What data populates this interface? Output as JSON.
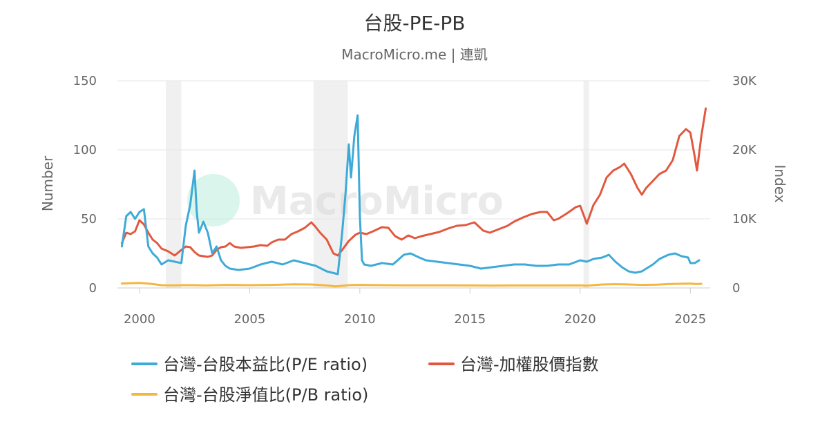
{
  "chart_data": {
    "type": "line",
    "title": "台股-PE-PB",
    "subtitle": "MacroMicro.me | 連凱",
    "ylabel_left": "Number",
    "ylabel_right": "Index",
    "watermark": "MacroMicro",
    "xlim": [
      1999.0,
      2025.9
    ],
    "ylim_left": [
      0,
      150
    ],
    "ylim_right": [
      0,
      30000
    ],
    "x_ticks": [
      2000,
      2005,
      2010,
      2015,
      2020,
      2025
    ],
    "x_tick_labels": [
      "2000",
      "2005",
      "2010",
      "2015",
      "2020",
      "2025"
    ],
    "y_left_ticks": [
      0,
      50,
      100,
      150
    ],
    "y_left_tick_labels": [
      "0",
      "50",
      "100",
      "150"
    ],
    "y_right_ticks": [
      0,
      10000,
      20000,
      30000
    ],
    "y_right_tick_labels": [
      "0",
      "10K",
      "20K",
      "30K"
    ],
    "grid": true,
    "legend_position": "bottom",
    "recession_bands": [
      [
        2001.2,
        2001.9
      ],
      [
        2007.9,
        2009.45
      ],
      [
        2020.15,
        2020.4
      ]
    ],
    "series": [
      {
        "name": "台灣-台股本益比(P/E ratio)",
        "color": "#3eaad8",
        "axis": "left",
        "x": [
          1999.2,
          1999.4,
          1999.6,
          1999.8,
          2000.0,
          2000.2,
          2000.4,
          2000.6,
          2000.8,
          2001.0,
          2001.3,
          2001.6,
          2001.9,
          2002.1,
          2002.3,
          2002.5,
          2002.6,
          2002.7,
          2002.9,
          2003.1,
          2003.3,
          2003.5,
          2003.7,
          2003.9,
          2004.1,
          2004.5,
          2005.0,
          2005.5,
          2006.0,
          2006.5,
          2007.0,
          2007.5,
          2008.0,
          2008.5,
          2009.0,
          2009.2,
          2009.35,
          2009.5,
          2009.6,
          2009.75,
          2009.9,
          2010.0,
          2010.1,
          2010.2,
          2010.5,
          2011.0,
          2011.5,
          2012.0,
          2012.3,
          2012.7,
          2013.0,
          2013.5,
          2014.0,
          2014.5,
          2015.0,
          2015.5,
          2016.0,
          2016.5,
          2017.0,
          2017.5,
          2018.0,
          2018.5,
          2019.0,
          2019.5,
          2020.0,
          2020.3,
          2020.6,
          2021.0,
          2021.3,
          2021.6,
          2021.9,
          2022.2,
          2022.5,
          2022.8,
          2023.0,
          2023.3,
          2023.6,
          2024.0,
          2024.3,
          2024.6,
          2024.9,
          2025.0,
          2025.2,
          2025.4
        ],
        "values": [
          30,
          52,
          55,
          50,
          55,
          57,
          30,
          25,
          22,
          17,
          20,
          19,
          18,
          45,
          60,
          85,
          55,
          40,
          48,
          40,
          25,
          30,
          20,
          16,
          14,
          13,
          14,
          17,
          19,
          17,
          20,
          18,
          16,
          12,
          10,
          40,
          68,
          104,
          80,
          110,
          125,
          52,
          20,
          17,
          16,
          18,
          17,
          24,
          25,
          22,
          20,
          19,
          18,
          17,
          16,
          14,
          15,
          16,
          17,
          17,
          16,
          16,
          17,
          17,
          20,
          19,
          21,
          22,
          24,
          19,
          15,
          12,
          11,
          12,
          14,
          17,
          21,
          24,
          25,
          23,
          22,
          18,
          18,
          20
        ]
      },
      {
        "name": "台灣-加權股價指數",
        "color": "#e2583e",
        "axis": "right",
        "x": [
          1999.2,
          1999.4,
          1999.6,
          1999.8,
          2000.0,
          2000.2,
          2000.4,
          2000.6,
          2000.8,
          2001.0,
          2001.3,
          2001.6,
          2001.9,
          2002.1,
          2002.3,
          2002.5,
          2002.7,
          2002.9,
          2003.1,
          2003.3,
          2003.5,
          2003.7,
          2003.9,
          2004.1,
          2004.3,
          2004.6,
          2004.9,
          2005.2,
          2005.5,
          2005.8,
          2006.0,
          2006.3,
          2006.6,
          2006.9,
          2007.2,
          2007.5,
          2007.8,
          2008.0,
          2008.2,
          2008.5,
          2008.8,
          2009.0,
          2009.2,
          2009.5,
          2009.8,
          2010.0,
          2010.3,
          2010.6,
          2011.0,
          2011.3,
          2011.6,
          2011.9,
          2012.2,
          2012.5,
          2012.8,
          2013.2,
          2013.6,
          2014.0,
          2014.4,
          2014.8,
          2015.2,
          2015.6,
          2015.9,
          2016.3,
          2016.7,
          2017.0,
          2017.4,
          2017.8,
          2018.2,
          2018.5,
          2018.8,
          2019.0,
          2019.4,
          2019.8,
          2020.0,
          2020.2,
          2020.3,
          2020.6,
          2020.9,
          2021.2,
          2021.5,
          2021.8,
          2022.0,
          2022.3,
          2022.6,
          2022.8,
          2023.0,
          2023.3,
          2023.6,
          2023.9,
          2024.2,
          2024.5,
          2024.8,
          2025.0,
          2025.2,
          2025.3,
          2025.5,
          2025.7
        ],
        "values": [
          6500,
          8000,
          7800,
          8200,
          9800,
          9200,
          8000,
          7000,
          6500,
          5700,
          5300,
          4700,
          5500,
          6000,
          5900,
          5200,
          4700,
          4600,
          4500,
          4700,
          5500,
          5900,
          6000,
          6500,
          6000,
          5800,
          5900,
          6000,
          6200,
          6100,
          6600,
          7000,
          7000,
          7800,
          8200,
          8700,
          9500,
          8800,
          8000,
          7000,
          5000,
          4700,
          5500,
          6800,
          7700,
          8000,
          7800,
          8200,
          8800,
          8700,
          7500,
          7000,
          7600,
          7200,
          7500,
          7800,
          8100,
          8600,
          9000,
          9100,
          9500,
          8300,
          8000,
          8500,
          9000,
          9600,
          10200,
          10700,
          11000,
          11000,
          9800,
          10000,
          10800,
          11700,
          11900,
          10200,
          9300,
          12000,
          13500,
          16000,
          17000,
          17500,
          18000,
          16500,
          14500,
          13500,
          14500,
          15500,
          16500,
          17000,
          18500,
          22000,
          23000,
          22500,
          19000,
          17000,
          22000,
          26000
        ]
      },
      {
        "name": "台灣-台股淨值比(P/B ratio)",
        "color": "#f5b63d",
        "axis": "left",
        "x": [
          1999.2,
          2000.0,
          2000.5,
          2001.0,
          2001.5,
          2002.0,
          2002.5,
          2003.0,
          2004.0,
          2005.0,
          2006.0,
          2007.0,
          2007.8,
          2008.5,
          2008.9,
          2009.5,
          2010.0,
          2011.0,
          2012.0,
          2013.0,
          2014.0,
          2015.0,
          2016.0,
          2017.0,
          2018.0,
          2019.0,
          2020.0,
          2020.3,
          2021.0,
          2021.5,
          2022.0,
          2022.8,
          2023.5,
          2024.0,
          2024.5,
          2025.0,
          2025.3,
          2025.5
        ],
        "values": [
          3.2,
          3.6,
          3.0,
          2.0,
          1.8,
          2.0,
          2.0,
          1.8,
          2.2,
          2.0,
          2.2,
          2.6,
          2.5,
          1.8,
          1.1,
          2.0,
          2.2,
          2.0,
          1.9,
          1.9,
          1.9,
          1.8,
          1.7,
          1.8,
          1.8,
          1.8,
          1.9,
          1.6,
          2.5,
          2.7,
          2.6,
          2.2,
          2.4,
          2.8,
          3.0,
          3.1,
          2.8,
          3.0
        ]
      }
    ]
  }
}
